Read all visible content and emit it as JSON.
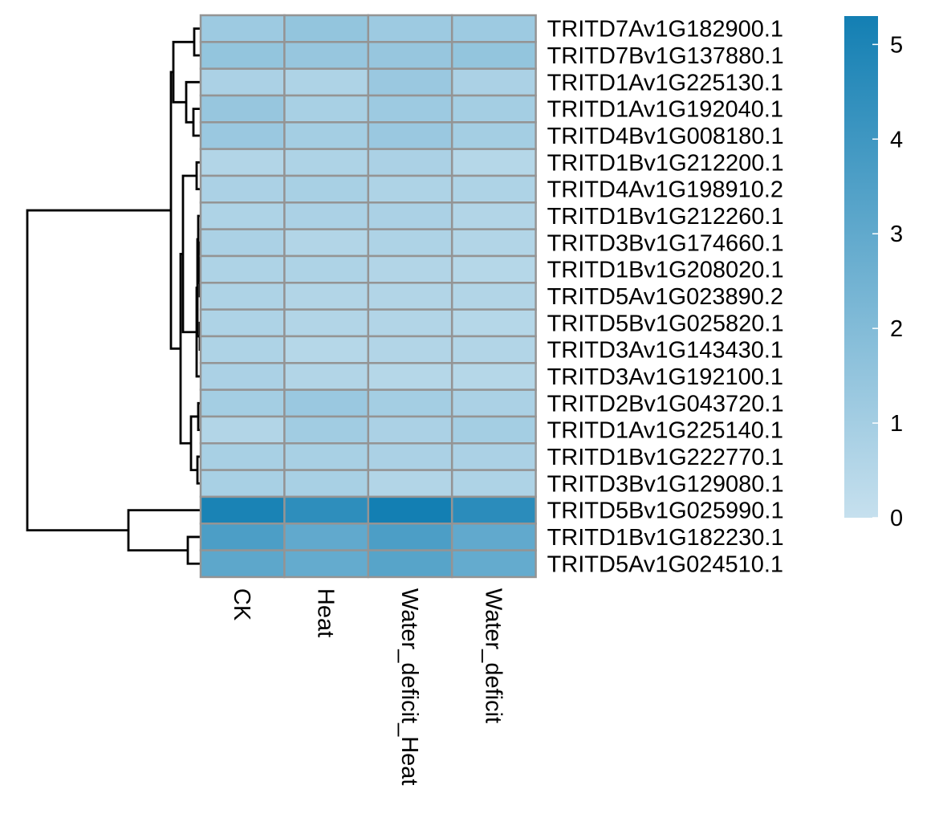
{
  "chart_data": {
    "type": "heatmap",
    "title": "",
    "columns": [
      "CK",
      "Heat",
      "Water_deficit_Heat",
      "Water_deficit"
    ],
    "rows": [
      {
        "label": "TRITD7Av1G182900.1",
        "values": [
          1.2,
          1.5,
          1.2,
          1.2
        ]
      },
      {
        "label": "TRITD7Bv1G137880.1",
        "values": [
          1.5,
          1.4,
          1.4,
          1.5
        ]
      },
      {
        "label": "TRITD1Av1G225130.1",
        "values": [
          0.8,
          0.7,
          1.3,
          0.8
        ]
      },
      {
        "label": "TRITD1Av1G192040.1",
        "values": [
          1.4,
          0.9,
          1.2,
          1.0
        ]
      },
      {
        "label": "TRITD4Bv1G008180.1",
        "values": [
          1.3,
          1.0,
          1.3,
          1.0
        ]
      },
      {
        "label": "TRITD1Bv1G212200.1",
        "values": [
          0.6,
          0.7,
          0.8,
          0.5
        ]
      },
      {
        "label": "TRITD4Av1G198910.2",
        "values": [
          0.8,
          0.9,
          0.7,
          0.7
        ]
      },
      {
        "label": "TRITD1Bv1G212260.1",
        "values": [
          0.7,
          0.8,
          0.8,
          0.6
        ]
      },
      {
        "label": "TRITD3Bv1G174660.1",
        "values": [
          0.8,
          0.6,
          0.7,
          0.6
        ]
      },
      {
        "label": "TRITD1Bv1G208020.1",
        "values": [
          0.7,
          0.7,
          0.6,
          0.5
        ]
      },
      {
        "label": "TRITD5Av1G023890.2",
        "values": [
          0.7,
          0.6,
          0.6,
          0.6
        ]
      },
      {
        "label": "TRITD5Bv1G025820.1",
        "values": [
          0.7,
          0.6,
          0.6,
          0.5
        ]
      },
      {
        "label": "TRITD3Av1G143430.1",
        "values": [
          0.7,
          0.5,
          0.6,
          0.6
        ]
      },
      {
        "label": "TRITD3Av1G192100.1",
        "values": [
          0.8,
          0.6,
          0.5,
          0.5
        ]
      },
      {
        "label": "TRITD2Bv1G043720.1",
        "values": [
          1.0,
          1.3,
          1.0,
          0.8
        ]
      },
      {
        "label": "TRITD1Av1G225140.1",
        "values": [
          0.6,
          1.1,
          0.8,
          1.0
        ]
      },
      {
        "label": "TRITD1Bv1G222770.1",
        "values": [
          0.9,
          0.9,
          0.8,
          0.8
        ]
      },
      {
        "label": "TRITD3Bv1G129080.1",
        "values": [
          0.9,
          0.9,
          0.6,
          0.7
        ]
      },
      {
        "label": "TRITD5Bv1G025990.1",
        "values": [
          5.1,
          4.5,
          5.3,
          4.6
        ]
      },
      {
        "label": "TRITD1Bv1G182230.1",
        "values": [
          3.6,
          3.0,
          3.6,
          3.0
        ]
      },
      {
        "label": "TRITD5Av1G024510.1",
        "values": [
          3.1,
          2.9,
          3.3,
          2.9
        ]
      }
    ],
    "colorbar": {
      "ticks": [
        0,
        1,
        2,
        3,
        4,
        5
      ],
      "range": [
        0,
        5.3
      ],
      "low_color": "#c6e0ee",
      "high_color": "#137fb3"
    },
    "dendrogram": "rows",
    "cell_border_color": "#949494"
  }
}
